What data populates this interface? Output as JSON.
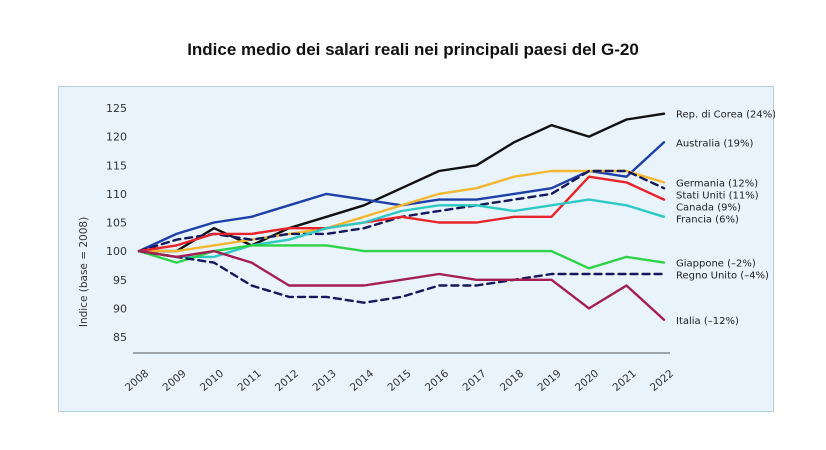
{
  "chart_data": {
    "type": "line",
    "title": "Indice medio dei salari reali nei principali paesi del G-20",
    "ylabel": "Indice (base = 2008)",
    "xlabel": "",
    "ylim": [
      85,
      125
    ],
    "yticks": [
      85,
      90,
      95,
      100,
      105,
      110,
      115,
      120,
      125
    ],
    "x": [
      "2008",
      "2009",
      "2010",
      "2011",
      "2012",
      "2013",
      "2014",
      "2015",
      "2016",
      "2017",
      "2018",
      "2019",
      "2020",
      "2021",
      "2022"
    ],
    "grid": false,
    "legend": "right end labels",
    "series": [
      {
        "name": "Rep. di Corea (24%)",
        "color": "#111111",
        "dash": false,
        "values": [
          100,
          100,
          104,
          101,
          104,
          106,
          108,
          111,
          114,
          115,
          119,
          122,
          120,
          123,
          124
        ]
      },
      {
        "name": "Australia (19%)",
        "color": "#1f3fa8",
        "dash": false,
        "values": [
          100,
          103,
          105,
          106,
          108,
          110,
          109,
          108,
          109,
          109,
          110,
          111,
          114,
          113,
          119
        ]
      },
      {
        "name": "Germania (12%)",
        "color": "#f5b730",
        "dash": false,
        "values": [
          100,
          100,
          101,
          102,
          103,
          104,
          106,
          108,
          110,
          111,
          113,
          114,
          114,
          114,
          112
        ]
      },
      {
        "name": "Stati Uniti (11%)",
        "color": "#14185c",
        "dash": true,
        "values": [
          100,
          102,
          103,
          102,
          103,
          103,
          104,
          106,
          107,
          108,
          109,
          110,
          114,
          114,
          111
        ]
      },
      {
        "name": "Canada (9%)",
        "color": "#e8232a",
        "dash": false,
        "values": [
          100,
          101,
          103,
          103,
          104,
          104,
          105,
          106,
          105,
          105,
          106,
          106,
          113,
          112,
          109
        ]
      },
      {
        "name": "Francia (6%)",
        "color": "#2ec9c3",
        "dash": false,
        "values": [
          100,
          99,
          99,
          101,
          102,
          104,
          105,
          107,
          108,
          108,
          107,
          108,
          109,
          108,
          106
        ]
      },
      {
        "name": "Giappone (–2%)",
        "color": "#2ed348",
        "dash": false,
        "values": [
          100,
          98,
          100,
          101,
          101,
          101,
          100,
          100,
          100,
          100,
          100,
          100,
          97,
          99,
          98
        ]
      },
      {
        "name": "Regno Unito (–4%)",
        "color": "#14185c",
        "dash": true,
        "values": [
          100,
          99,
          98,
          94,
          92,
          92,
          91,
          92,
          94,
          94,
          95,
          96,
          96,
          96,
          96
        ]
      },
      {
        "name": "Italia (–12%)",
        "color": "#a51e52",
        "dash": false,
        "values": [
          100,
          99,
          100,
          98,
          94,
          94,
          94,
          95,
          96,
          95,
          95,
          95,
          90,
          94,
          88
        ]
      }
    ]
  }
}
